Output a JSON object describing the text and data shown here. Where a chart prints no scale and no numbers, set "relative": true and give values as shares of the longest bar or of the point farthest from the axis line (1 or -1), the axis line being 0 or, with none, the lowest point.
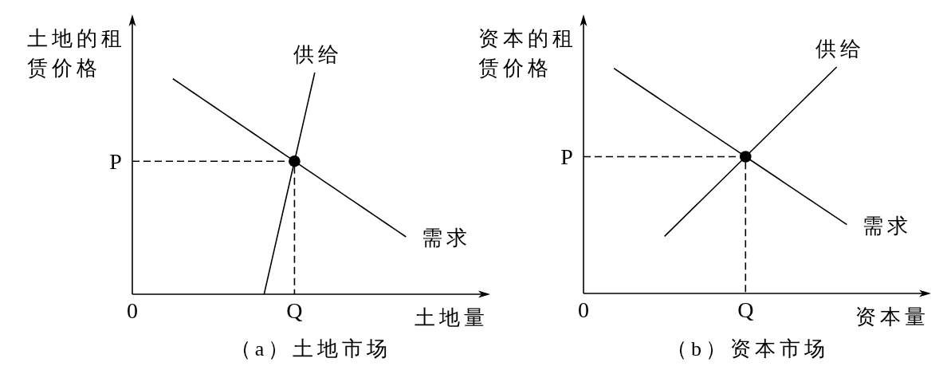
{
  "chart_data": [
    {
      "type": "line",
      "title": "（a）土地市场",
      "xlabel": "土地量",
      "ylabel": "土地的租赁价格",
      "relative": true,
      "categories": [
        "0",
        null,
        null,
        null,
        null,
        null,
        null,
        null,
        null,
        null,
        null,
        null,
        null,
        null,
        null,
        null,
        "Q",
        null,
        null,
        null,
        null,
        null,
        null,
        null,
        null,
        null,
        null,
        null,
        null,
        null,
        null,
        null,
        null,
        null,
        null,
        null
      ],
      "series": [
        {
          "name": "需求",
          "color": "#000000",
          "values": [
            null,
            null,
            null,
            null,
            0.972,
            0.941,
            0.91,
            0.879,
            0.848,
            0.817,
            0.786,
            0.755,
            0.724,
            0.693,
            0.662,
            0.631,
            0.6,
            0.569,
            0.538,
            0.507,
            0.476,
            0.445,
            0.414,
            0.383,
            0.352,
            0.321,
            0.29,
            0.259,
            null,
            null,
            null,
            null,
            null,
            null,
            null,
            null
          ]
        },
        {
          "name": "供给",
          "color": "#000000",
          "values": [
            null,
            null,
            null,
            null,
            null,
            null,
            null,
            null,
            null,
            null,
            null,
            null,
            null,
            0,
            0.2,
            0.4,
            0.6,
            0.8,
            1,
            null,
            null,
            null,
            null,
            null,
            null,
            null,
            null,
            null,
            null,
            null,
            null,
            null,
            null,
            null,
            null,
            null
          ]
        },
        {
          "type": "step",
          "color": "#000000",
          "line_style": "dashed",
          "values": [
            0.6,
            0.6,
            0.6,
            0.6,
            0.6,
            0.6,
            0.6,
            0.6,
            0.6,
            0.6,
            0.6,
            0.6,
            0.6,
            0.6,
            0.6,
            0.6,
            0,
            null,
            null,
            null,
            null,
            null,
            null,
            null,
            null,
            null,
            null,
            null,
            null,
            null,
            null,
            null,
            null,
            null,
            null,
            null
          ]
        },
        {
          "type": "scatter",
          "color": "#000000",
          "marker": "circle",
          "values": [
            null,
            null,
            null,
            null,
            null,
            null,
            null,
            null,
            null,
            null,
            null,
            null,
            null,
            null,
            null,
            null,
            0.6,
            null,
            null,
            null,
            null,
            null,
            null,
            null,
            null,
            null,
            null,
            null,
            null,
            null,
            null,
            null,
            null,
            null,
            null,
            null
          ]
        }
      ],
      "annotations": [
        {
          "text": "P",
          "x": "0",
          "y": 0.6
        }
      ]
    },
    {
      "type": "line",
      "title": "（b）资本市场",
      "xlabel": "资本量",
      "ylabel": "资本的租赁价格",
      "relative": true,
      "categories": [
        "0",
        null,
        null,
        null,
        null,
        null,
        null,
        null,
        null,
        null,
        null,
        null,
        null,
        null,
        null,
        null,
        "Q",
        null,
        null,
        null,
        null,
        null,
        null,
        null,
        null,
        null,
        null,
        null,
        null,
        null,
        null,
        null,
        null,
        null,
        null
      ],
      "series": [
        {
          "name": "需求",
          "color": "#000000",
          "values": [
            null,
            null,
            null,
            0.994,
            0.964,
            0.934,
            0.904,
            0.874,
            0.844,
            0.814,
            0.784,
            0.754,
            0.724,
            0.694,
            0.664,
            0.634,
            0.604,
            0.574,
            0.544,
            0.514,
            0.484,
            0.454,
            0.424,
            0.394,
            0.364,
            0.334,
            0.304,
            null,
            null,
            null,
            null,
            null,
            null,
            null,
            null
          ]
        },
        {
          "name": "供给",
          "color": "#000000",
          "values": [
            null,
            null,
            null,
            null,
            null,
            null,
            null,
            null,
            0.252,
            0.296,
            0.34,
            0.384,
            0.428,
            0.472,
            0.516,
            0.56,
            0.604,
            0.648,
            0.692,
            0.736,
            0.78,
            0.824,
            0.868,
            0.912,
            0.956,
            1,
            null,
            null,
            null,
            null,
            null,
            null,
            null,
            null,
            null
          ]
        },
        {
          "type": "step",
          "color": "#000000",
          "line_style": "dashed",
          "values": [
            0.604,
            0.604,
            0.604,
            0.604,
            0.604,
            0.604,
            0.604,
            0.604,
            0.604,
            0.604,
            0.604,
            0.604,
            0.604,
            0.604,
            0.604,
            0.604,
            0,
            null,
            null,
            null,
            null,
            null,
            null,
            null,
            null,
            null,
            null,
            null,
            null,
            null,
            null,
            null,
            null,
            null,
            null
          ]
        },
        {
          "type": "scatter",
          "color": "#000000",
          "marker": "circle",
          "values": [
            null,
            null,
            null,
            null,
            null,
            null,
            null,
            null,
            null,
            null,
            null,
            null,
            null,
            null,
            null,
            null,
            0.604,
            null,
            null,
            null,
            null,
            null,
            null,
            null,
            null,
            null,
            null,
            null,
            null,
            null,
            null,
            null,
            null,
            null,
            null
          ]
        }
      ],
      "annotations": [
        {
          "text": "P",
          "x": "0",
          "y": 0.604
        }
      ]
    }
  ]
}
